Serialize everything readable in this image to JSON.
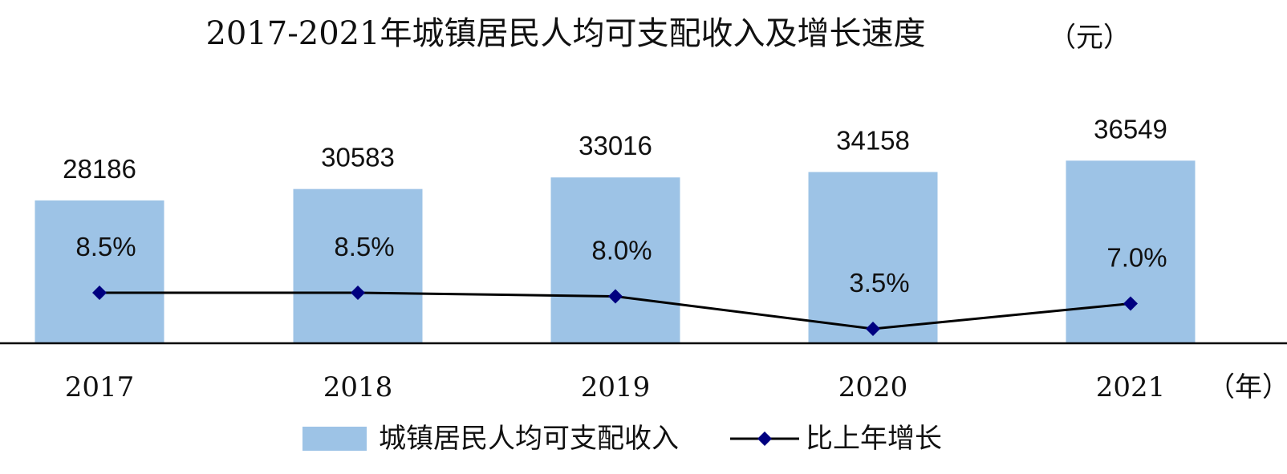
{
  "chart_data": {
    "type": "bar",
    "title": "2017-2021年城镇居民人均可支配收入及增长速度",
    "ylabel": "（元）",
    "xlabel": "（年）",
    "categories": [
      "2017",
      "2018",
      "2019",
      "2020",
      "2021"
    ],
    "bar_series": {
      "name": "城镇居民人均可支配收入",
      "values": [
        28186,
        30583,
        33016,
        34158,
        36549
      ],
      "labels": [
        "28186",
        "30583",
        "33016",
        "34158",
        "36549"
      ],
      "color": "#9dc3e6"
    },
    "line_series": {
      "name": "比上年增长",
      "values": [
        8.5,
        8.5,
        8.0,
        3.5,
        7.0
      ],
      "labels": [
        "8.5%",
        "8.5%",
        "8.0%",
        "3.5%",
        "7.0%"
      ],
      "line_color": "#000000",
      "marker_color": "#000080"
    },
    "axis_color": "#000000",
    "grid": false,
    "legend_position": "bottom"
  }
}
